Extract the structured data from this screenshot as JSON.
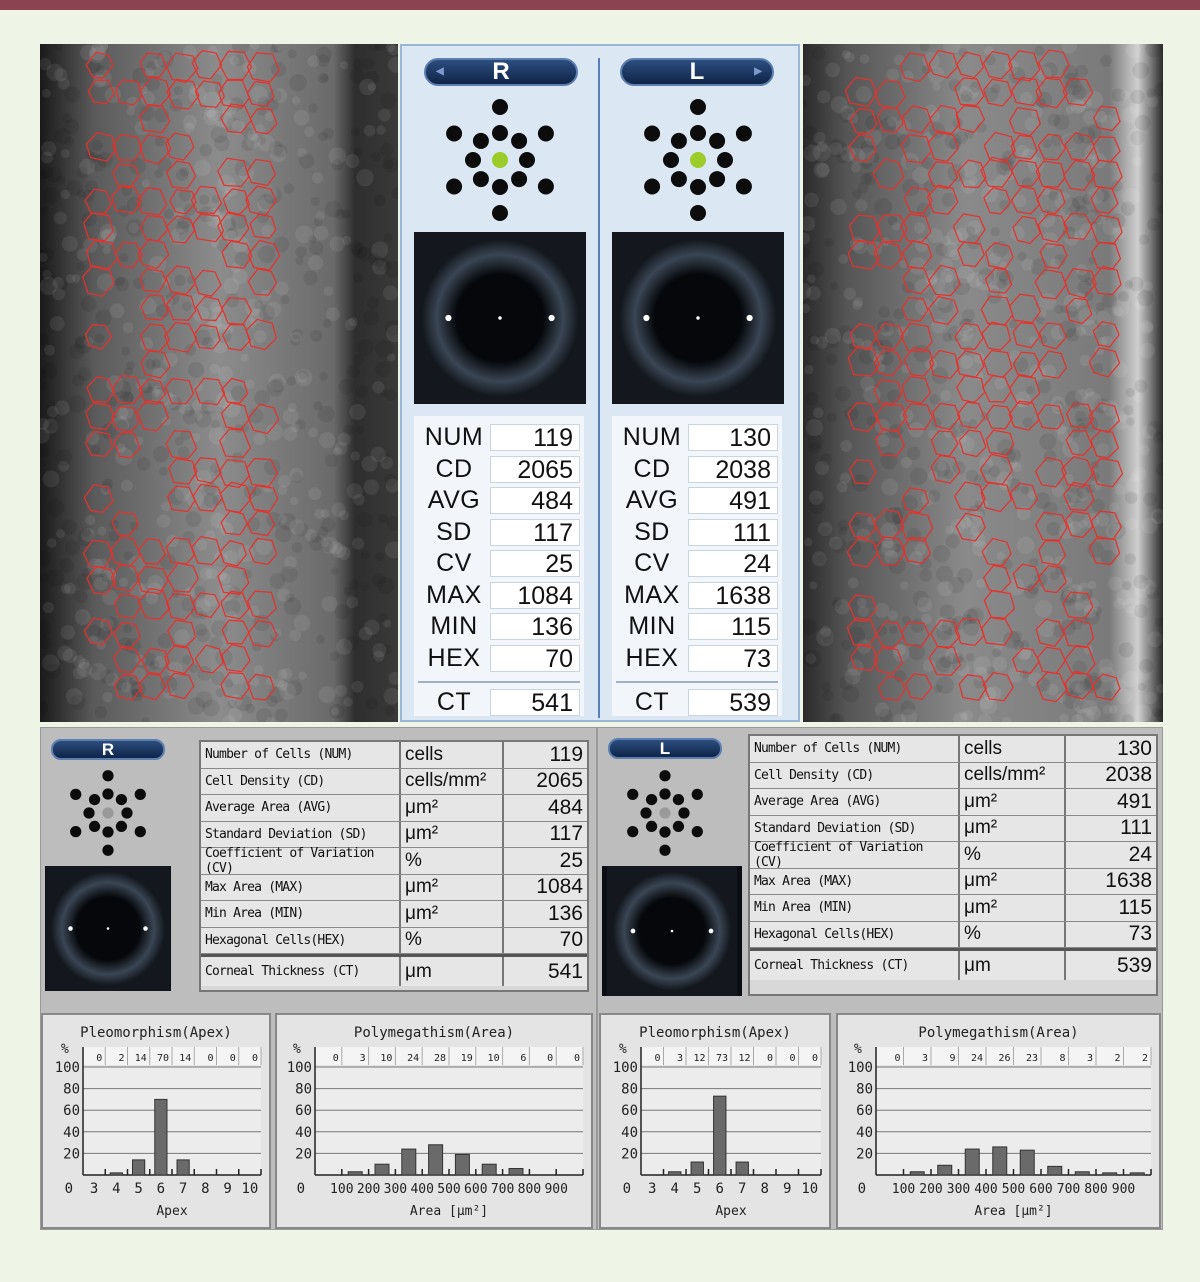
{
  "center": {
    "right": {
      "eye": "R",
      "rows": [
        [
          "NUM",
          "119"
        ],
        [
          "CD",
          "2065"
        ],
        [
          "AVG",
          "484"
        ],
        [
          "SD",
          "117"
        ],
        [
          "CV",
          "25"
        ],
        [
          "MAX",
          "1084"
        ],
        [
          "MIN",
          "136"
        ],
        [
          "HEX",
          "70"
        ],
        [
          "CT",
          "541"
        ]
      ]
    },
    "left": {
      "eye": "L",
      "rows": [
        [
          "NUM",
          "130"
        ],
        [
          "CD",
          "2038"
        ],
        [
          "AVG",
          "491"
        ],
        [
          "SD",
          "111"
        ],
        [
          "CV",
          "24"
        ],
        [
          "MAX",
          "1638"
        ],
        [
          "MIN",
          "115"
        ],
        [
          "HEX",
          "73"
        ],
        [
          "CT",
          "539"
        ]
      ]
    }
  },
  "lower": {
    "right": {
      "eye": "R",
      "rows": [
        {
          "label": "Number of Cells (NUM)",
          "unit": "cells",
          "value": "119"
        },
        {
          "label": "Cell Density (CD)",
          "unit": "cells/mm²",
          "value": "2065"
        },
        {
          "label": "Average Area (AVG)",
          "unit": "μm²",
          "value": "484"
        },
        {
          "label": "Standard Deviation (SD)",
          "unit": "μm²",
          "value": "117"
        },
        {
          "label": "Coefficient of Variation (CV)",
          "unit": "%",
          "value": "25"
        },
        {
          "label": "Max Area (MAX)",
          "unit": "μm²",
          "value": "1084"
        },
        {
          "label": "Min Area (MIN)",
          "unit": "μm²",
          "value": "136"
        },
        {
          "label": "Hexagonal Cells(HEX)",
          "unit": "%",
          "value": "70"
        },
        {
          "label": "Corneal Thickness (CT)",
          "unit": "μm",
          "value": "541"
        }
      ]
    },
    "left": {
      "eye": "L",
      "rows": [
        {
          "label": "Number of Cells (NUM)",
          "unit": "cells",
          "value": "130"
        },
        {
          "label": "Cell Density (CD)",
          "unit": "cells/mm²",
          "value": "2038"
        },
        {
          "label": "Average Area (AVG)",
          "unit": "μm²",
          "value": "491"
        },
        {
          "label": "Standard Deviation (SD)",
          "unit": "μm²",
          "value": "111"
        },
        {
          "label": "Coefficient of Variation (CV)",
          "unit": "%",
          "value": "24"
        },
        {
          "label": "Max Area (MAX)",
          "unit": "μm²",
          "value": "1638"
        },
        {
          "label": "Min Area (MIN)",
          "unit": "μm²",
          "value": "115"
        },
        {
          "label": "Hexagonal Cells(HEX)",
          "unit": "%",
          "value": "73"
        },
        {
          "label": "Corneal Thickness (CT)",
          "unit": "μm",
          "value": "539"
        }
      ]
    }
  },
  "colors": {
    "cell_outline": "#e8302a",
    "fixation_active": "#9ccc2a",
    "header_bar": "#8b4351"
  },
  "chart_data": [
    {
      "type": "bar",
      "title": "Pleomorphism(Apex)",
      "xlabel": "Apex",
      "ylabel": "%",
      "categories": [
        "3",
        "4",
        "5",
        "6",
        "7",
        "8",
        "9",
        "10"
      ],
      "values": [
        0,
        2,
        14,
        70,
        14,
        0,
        0,
        0
      ],
      "ylim": [
        0,
        100
      ],
      "yticks": [
        0,
        20,
        40,
        60,
        80,
        100
      ],
      "grid": true
    },
    {
      "type": "bar",
      "title": "Polymegathism(Area)",
      "xlabel": "Area [μm²]",
      "ylabel": "%",
      "x_tick_labels": [
        "0",
        "100",
        "200",
        "300",
        "400",
        "500",
        "600",
        "700",
        "800",
        "900"
      ],
      "bins": [
        "0-100",
        "100-200",
        "200-300",
        "300-400",
        "400-500",
        "500-600",
        "600-700",
        "700-800",
        "800-900",
        "900-1000"
      ],
      "values": [
        0,
        3,
        10,
        24,
        28,
        19,
        10,
        6,
        0,
        0
      ],
      "ylim": [
        0,
        100
      ],
      "yticks": [
        0,
        20,
        40,
        60,
        80,
        100
      ],
      "grid": true
    },
    {
      "type": "bar",
      "title": "Pleomorphism(Apex)",
      "xlabel": "Apex",
      "ylabel": "%",
      "categories": [
        "3",
        "4",
        "5",
        "6",
        "7",
        "8",
        "9",
        "10"
      ],
      "values": [
        0,
        3,
        12,
        73,
        12,
        0,
        0,
        0
      ],
      "ylim": [
        0,
        100
      ],
      "yticks": [
        0,
        20,
        40,
        60,
        80,
        100
      ],
      "grid": true
    },
    {
      "type": "bar",
      "title": "Polymegathism(Area)",
      "xlabel": "Area [μm²]",
      "ylabel": "%",
      "x_tick_labels": [
        "0",
        "100",
        "200",
        "300",
        "400",
        "500",
        "600",
        "700",
        "800",
        "900"
      ],
      "bins": [
        "0-100",
        "100-200",
        "200-300",
        "300-400",
        "400-500",
        "500-600",
        "600-700",
        "700-800",
        "800-900",
        "900-1000"
      ],
      "values": [
        0,
        3,
        9,
        24,
        26,
        23,
        8,
        3,
        2,
        2
      ],
      "ylim": [
        0,
        100
      ],
      "yticks": [
        0,
        20,
        40,
        60,
        80,
        100
      ],
      "grid": true
    }
  ]
}
